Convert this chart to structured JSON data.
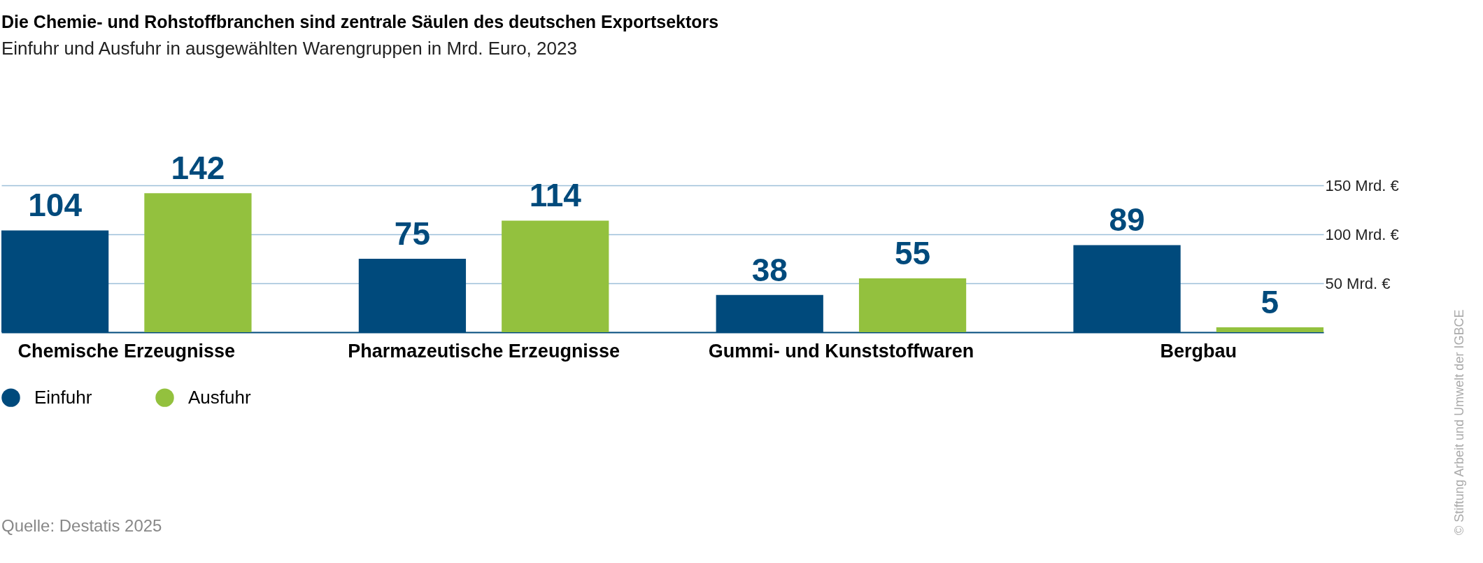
{
  "chart_data": {
    "type": "bar",
    "title": "Die Chemie- und Rohstoffbranchen sind zentrale Säulen des deutschen Exportsektors",
    "subtitle": "Einfuhr und Ausfuhr in ausgewählten Warengruppen in Mrd. Euro, 2023",
    "categories": [
      "Chemische Erzeugnisse",
      "Pharmazeutische Erzeugnisse",
      "Gummi- und Kunststoffwaren",
      "Bergbau"
    ],
    "series": [
      {
        "name": "Einfuhr",
        "color": "#004a7c",
        "values": [
          104,
          75,
          38,
          89
        ]
      },
      {
        "name": "Ausfuhr",
        "color": "#93c13e",
        "values": [
          142,
          114,
          55,
          5
        ]
      }
    ],
    "ylim": [
      0,
      150
    ],
    "yticks": [
      {
        "value": 50,
        "label": "50 Mrd. €"
      },
      {
        "value": 100,
        "label": "100 Mrd. €"
      },
      {
        "value": 150,
        "label": "150 Mrd. €"
      }
    ],
    "grid": "y",
    "legend": "bottom",
    "data_labels": true,
    "annotations": [
      "Quelle: Destatis 2025",
      "© Stiftung Arbeit und Umwelt der IGBCE"
    ]
  }
}
